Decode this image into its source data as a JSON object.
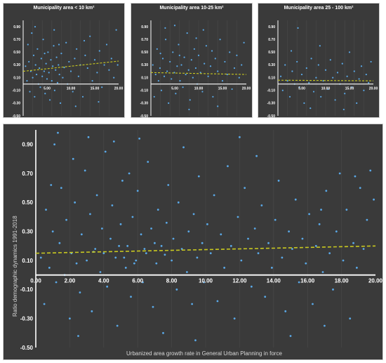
{
  "colors": {
    "background": "#3a3a3a",
    "points": "#5aa8e6",
    "trend": "#c8c820",
    "zero_line": "#ffffff",
    "text": "#ffffff"
  },
  "chart_data": [
    {
      "type": "scatter",
      "title": "Municipality area < 10 km²",
      "xlim": [
        0,
        20
      ],
      "ylim": [
        -0.5,
        1.0
      ],
      "x_ticks": [
        "5.00",
        "10.00",
        "15.00",
        "20.00"
      ],
      "y_ticks": [
        "0.90",
        "0.70",
        "0.50",
        "0.30",
        "0.10",
        "-0.10",
        "-0.30",
        "-0.50"
      ],
      "trend": {
        "x": [
          0,
          20
        ],
        "y": [
          0.2,
          0.36
        ]
      },
      "points": [
        [
          0.5,
          0.28
        ],
        [
          0.8,
          0.05
        ],
        [
          1.0,
          0.62
        ],
        [
          1.2,
          0.35
        ],
        [
          1.4,
          -0.12
        ],
        [
          1.6,
          0.2
        ],
        [
          1.8,
          0.8
        ],
        [
          2.0,
          0.1
        ],
        [
          2.2,
          0.45
        ],
        [
          2.4,
          -0.2
        ],
        [
          2.6,
          0.3
        ],
        [
          2.8,
          0.15
        ],
        [
          3.0,
          0.55
        ],
        [
          3.2,
          0.0
        ],
        [
          3.4,
          0.25
        ],
        [
          3.6,
          -0.05
        ],
        [
          3.8,
          0.4
        ],
        [
          4.0,
          0.12
        ],
        [
          4.2,
          0.7
        ],
        [
          4.4,
          0.2
        ],
        [
          4.6,
          -0.15
        ],
        [
          4.8,
          0.32
        ],
        [
          5.0,
          0.08
        ],
        [
          5.2,
          0.5
        ],
        [
          5.4,
          0.18
        ],
        [
          5.6,
          -0.25
        ],
        [
          5.8,
          0.38
        ],
        [
          6.0,
          0.05
        ],
        [
          6.2,
          0.28
        ],
        [
          6.4,
          0.6
        ],
        [
          6.6,
          -0.1
        ],
        [
          6.8,
          0.22
        ],
        [
          7.0,
          0.42
        ],
        [
          7.2,
          0.02
        ],
        [
          7.4,
          0.3
        ],
        [
          7.6,
          0.15
        ],
        [
          7.8,
          -0.3
        ],
        [
          8.0,
          0.48
        ],
        [
          8.3,
          0.1
        ],
        [
          8.6,
          0.26
        ],
        [
          9.0,
          0.65
        ],
        [
          9.3,
          0.0
        ],
        [
          9.6,
          0.35
        ],
        [
          10.0,
          0.2
        ],
        [
          10.4,
          -0.12
        ],
        [
          10.8,
          0.4
        ],
        [
          11.2,
          0.55
        ],
        [
          11.6,
          0.12
        ],
        [
          12.0,
          0.3
        ],
        [
          12.5,
          -0.2
        ],
        [
          13.0,
          0.45
        ],
        [
          13.5,
          0.25
        ],
        [
          14.0,
          0.75
        ],
        [
          14.5,
          0.05
        ],
        [
          15.0,
          0.38
        ],
        [
          15.5,
          0.18
        ],
        [
          16.0,
          0.52
        ],
        [
          16.5,
          -0.05
        ],
        [
          17.0,
          0.3
        ],
        [
          17.5,
          0.62
        ],
        [
          18.0,
          0.22
        ],
        [
          18.5,
          0.4
        ],
        [
          19.0,
          0.1
        ],
        [
          19.5,
          0.85
        ],
        [
          19.8,
          0.3
        ],
        [
          2.5,
          0.9
        ],
        [
          6.5,
          0.85
        ],
        [
          11.0,
          -0.35
        ],
        [
          15.8,
          -0.28
        ],
        [
          4.5,
          0.48
        ],
        [
          7.5,
          0.62
        ],
        [
          12.8,
          0.68
        ]
      ]
    },
    {
      "type": "scatter",
      "title": "Municipality area  10-25 km²",
      "xlim": [
        0,
        20
      ],
      "ylim": [
        -0.5,
        1.0
      ],
      "x_ticks": [
        "5.00",
        "10.00",
        "15.00",
        "20.00"
      ],
      "y_ticks": [
        "0.90",
        "0.70",
        "0.50",
        "0.30",
        "0.10",
        "-0.10",
        "-0.30",
        "-0.50"
      ],
      "trend": {
        "x": [
          0,
          20
        ],
        "y": [
          0.18,
          0.15
        ]
      },
      "points": [
        [
          0.4,
          0.3
        ],
        [
          0.7,
          -0.2
        ],
        [
          1.0,
          0.15
        ],
        [
          1.3,
          0.55
        ],
        [
          1.6,
          0.05
        ],
        [
          1.9,
          0.25
        ],
        [
          2.2,
          -0.1
        ],
        [
          2.5,
          0.4
        ],
        [
          2.8,
          0.12
        ],
        [
          3.1,
          0.7
        ],
        [
          3.4,
          0.2
        ],
        [
          3.7,
          -0.3
        ],
        [
          4.0,
          0.35
        ],
        [
          4.3,
          0.08
        ],
        [
          4.6,
          0.5
        ],
        [
          4.9,
          0.18
        ],
        [
          5.2,
          -0.15
        ],
        [
          5.5,
          0.28
        ],
        [
          5.8,
          0.62
        ],
        [
          6.1,
          0.05
        ],
        [
          6.4,
          0.3
        ],
        [
          6.7,
          -0.05
        ],
        [
          7.0,
          0.42
        ],
        [
          7.3,
          0.15
        ],
        [
          7.6,
          0.8
        ],
        [
          7.9,
          0.22
        ],
        [
          8.2,
          -0.25
        ],
        [
          8.5,
          0.38
        ],
        [
          8.8,
          0.1
        ],
        [
          9.1,
          0.55
        ],
        [
          9.4,
          0.25
        ],
        [
          9.7,
          0.0
        ],
        [
          10.0,
          0.45
        ],
        [
          10.4,
          0.18
        ],
        [
          10.8,
          -0.12
        ],
        [
          11.2,
          0.32
        ],
        [
          11.6,
          0.6
        ],
        [
          12.0,
          0.12
        ],
        [
          12.5,
          0.28
        ],
        [
          13.0,
          -0.2
        ],
        [
          13.5,
          0.4
        ],
        [
          14.0,
          0.2
        ],
        [
          14.5,
          0.7
        ],
        [
          15.0,
          0.05
        ],
        [
          15.5,
          0.35
        ],
        [
          16.0,
          0.15
        ],
        [
          16.5,
          0.5
        ],
        [
          17.0,
          -0.08
        ],
        [
          17.5,
          0.25
        ],
        [
          18.0,
          0.45
        ],
        [
          18.5,
          0.1
        ],
        [
          19.0,
          0.3
        ],
        [
          19.5,
          0.65
        ],
        [
          3.0,
          0.88
        ],
        [
          5.0,
          0.92
        ],
        [
          8.0,
          -0.4
        ],
        [
          11.0,
          0.85
        ],
        [
          14.0,
          -0.35
        ],
        [
          2.0,
          0.48
        ],
        [
          6.0,
          0.45
        ],
        [
          9.5,
          0.72
        ],
        [
          12.8,
          0.52
        ]
      ]
    },
    {
      "type": "scatter",
      "title": "Municipality area 25 - 100 km²",
      "xlim": [
        0,
        20
      ],
      "ylim": [
        -0.5,
        1.0
      ],
      "x_ticks": [
        "5.00",
        "10.00",
        "15.00",
        "20.00"
      ],
      "y_ticks": [
        "0.90",
        "0.70",
        "0.50",
        "0.30",
        "0.10",
        "-0.10",
        "-0.30",
        "-0.50"
      ],
      "trend": {
        "x": [
          0,
          20
        ],
        "y": [
          0.06,
          0.05
        ]
      },
      "points": [
        [
          0.6,
          0.12
        ],
        [
          1.0,
          -0.1
        ],
        [
          1.5,
          0.3
        ],
        [
          2.0,
          0.05
        ],
        [
          2.5,
          -0.2
        ],
        [
          3.0,
          0.2
        ],
        [
          3.5,
          0.0
        ],
        [
          4.0,
          0.35
        ],
        [
          4.5,
          -0.05
        ],
        [
          5.0,
          0.15
        ],
        [
          5.5,
          -0.3
        ],
        [
          6.0,
          0.25
        ],
        [
          6.5,
          0.02
        ],
        [
          7.0,
          0.4
        ],
        [
          7.5,
          -0.12
        ],
        [
          8.0,
          0.1
        ],
        [
          8.5,
          0.3
        ],
        [
          9.0,
          -0.2
        ],
        [
          9.5,
          0.05
        ],
        [
          10.0,
          0.22
        ],
        [
          10.5,
          -0.08
        ],
        [
          11.0,
          0.38
        ],
        [
          11.5,
          0.1
        ],
        [
          12.0,
          -0.25
        ],
        [
          12.5,
          0.18
        ],
        [
          13.0,
          0.0
        ],
        [
          13.5,
          0.32
        ],
        [
          14.0,
          -0.15
        ],
        [
          14.5,
          0.12
        ],
        [
          15.0,
          0.5
        ],
        [
          15.5,
          -0.05
        ],
        [
          16.0,
          0.2
        ],
        [
          16.5,
          -0.3
        ],
        [
          17.0,
          0.08
        ],
        [
          17.5,
          0.28
        ],
        [
          18.0,
          -0.1
        ],
        [
          18.5,
          0.15
        ],
        [
          19.0,
          0.02
        ],
        [
          19.5,
          0.35
        ],
        [
          4.2,
          0.88
        ],
        [
          8.8,
          0.6
        ],
        [
          13.8,
          -0.4
        ],
        [
          2.8,
          0.52
        ],
        [
          6.8,
          -0.38
        ]
      ]
    },
    {
      "type": "scatter",
      "title": "",
      "xlabel": "Urbanized area growth rate in General  Urban Planning in force",
      "ylabel": "Ratio  demographic  dynamics  1991-2018",
      "xlim": [
        0,
        20
      ],
      "ylim": [
        -0.5,
        1.0
      ],
      "x_ticks": [
        "0.00",
        "2.00",
        "4.00",
        "6.00",
        "8.00",
        "10.00",
        "12.00",
        "14.00",
        "16.00",
        "18.00",
        "20.00"
      ],
      "y_ticks": [
        "0.90",
        "0.70",
        "0.50",
        "0.30",
        "0.10",
        "-0.10",
        "-0.30",
        "-0.50"
      ],
      "trend": {
        "x": [
          0,
          20
        ],
        "y": [
          0.15,
          0.2
        ]
      },
      "points": [
        [
          0.3,
          0.12
        ],
        [
          0.5,
          -0.2
        ],
        [
          0.6,
          0.45
        ],
        [
          0.8,
          0.05
        ],
        [
          1.0,
          0.3
        ],
        [
          1.1,
          0.9
        ],
        [
          1.2,
          -0.05
        ],
        [
          1.4,
          0.22
        ],
        [
          1.5,
          0.6
        ],
        [
          1.7,
          0.0
        ],
        [
          1.8,
          0.38
        ],
        [
          2.0,
          -0.3
        ],
        [
          2.1,
          0.15
        ],
        [
          2.3,
          0.5
        ],
        [
          2.4,
          0.08
        ],
        [
          2.6,
          -0.12
        ],
        [
          2.7,
          0.28
        ],
        [
          2.9,
          0.72
        ],
        [
          3.0,
          0.1
        ],
        [
          3.2,
          0.42
        ],
        [
          3.3,
          -0.25
        ],
        [
          3.5,
          0.18
        ],
        [
          3.6,
          0.55
        ],
        [
          3.8,
          0.02
        ],
        [
          3.9,
          0.32
        ],
        [
          4.1,
          0.85
        ],
        [
          4.2,
          -0.08
        ],
        [
          4.4,
          0.25
        ],
        [
          4.5,
          0.48
        ],
        [
          4.7,
          0.12
        ],
        [
          4.8,
          -0.35
        ],
        [
          5.0,
          0.35
        ],
        [
          5.1,
          0.65
        ],
        [
          5.3,
          0.05
        ],
        [
          5.4,
          0.2
        ],
        [
          5.6,
          -0.15
        ],
        [
          5.7,
          0.4
        ],
        [
          5.9,
          0.1
        ],
        [
          6.0,
          0.58
        ],
        [
          6.2,
          0.28
        ],
        [
          6.3,
          -0.05
        ],
        [
          6.5,
          0.15
        ],
        [
          6.6,
          0.78
        ],
        [
          6.8,
          0.32
        ],
        [
          6.9,
          -0.22
        ],
        [
          7.1,
          0.08
        ],
        [
          7.2,
          0.45
        ],
        [
          7.4,
          0.2
        ],
        [
          7.5,
          -0.4
        ],
        [
          7.7,
          0.36
        ],
        [
          7.8,
          0.62
        ],
        [
          8.0,
          0.1
        ],
        [
          8.1,
          0.25
        ],
        [
          8.3,
          -0.1
        ],
        [
          8.4,
          0.5
        ],
        [
          8.6,
          0.18
        ],
        [
          8.7,
          0.88
        ],
        [
          8.9,
          0.02
        ],
        [
          9.0,
          0.3
        ],
        [
          9.2,
          -0.2
        ],
        [
          9.3,
          0.42
        ],
        [
          9.5,
          0.12
        ],
        [
          9.6,
          0.68
        ],
        [
          9.8,
          0.22
        ],
        [
          9.9,
          -0.05
        ],
        [
          10.1,
          0.35
        ],
        [
          10.3,
          0.15
        ],
        [
          10.5,
          0.55
        ],
        [
          10.7,
          -0.18
        ],
        [
          10.9,
          0.28
        ],
        [
          11.1,
          0.05
        ],
        [
          11.3,
          0.75
        ],
        [
          11.5,
          0.2
        ],
        [
          11.7,
          -0.3
        ],
        [
          11.9,
          0.4
        ],
        [
          12.1,
          0.1
        ],
        [
          12.3,
          0.6
        ],
        [
          12.5,
          0.25
        ],
        [
          12.7,
          -0.08
        ],
        [
          12.9,
          0.32
        ],
        [
          13.1,
          0.15
        ],
        [
          13.3,
          0.48
        ],
        [
          13.5,
          -0.15
        ],
        [
          13.7,
          0.22
        ],
        [
          13.9,
          0.05
        ],
        [
          14.1,
          0.38
        ],
        [
          14.3,
          0.65
        ],
        [
          14.5,
          0.12
        ],
        [
          14.7,
          -0.25
        ],
        [
          14.9,
          0.3
        ],
        [
          15.1,
          0.18
        ],
        [
          15.3,
          0.52
        ],
        [
          15.5,
          -0.05
        ],
        [
          15.7,
          0.25
        ],
        [
          15.9,
          0.08
        ],
        [
          16.1,
          0.42
        ],
        [
          16.3,
          -0.2
        ],
        [
          16.5,
          0.2
        ],
        [
          16.7,
          0.35
        ],
        [
          16.9,
          0.02
        ],
        [
          17.1,
          0.58
        ],
        [
          17.3,
          0.15
        ],
        [
          17.5,
          -0.1
        ],
        [
          17.7,
          0.3
        ],
        [
          17.9,
          0.7
        ],
        [
          18.1,
          0.1
        ],
        [
          18.3,
          0.45
        ],
        [
          18.5,
          -0.3
        ],
        [
          18.7,
          0.22
        ],
        [
          18.9,
          0.05
        ],
        [
          19.1,
          0.6
        ],
        [
          19.3,
          0.18
        ],
        [
          19.5,
          0.38
        ],
        [
          19.7,
          0.72
        ],
        [
          19.9,
          0.52
        ],
        [
          1.3,
          0.98
        ],
        [
          2.2,
          0.8
        ],
        [
          3.1,
          0.95
        ],
        [
          4.6,
          0.92
        ],
        [
          6.1,
          0.94
        ],
        [
          12.0,
          0.95
        ],
        [
          15.0,
          -0.42
        ],
        [
          17.0,
          -0.35
        ],
        [
          2.5,
          -0.42
        ],
        [
          9.4,
          -0.45
        ],
        [
          0.9,
          0.62
        ],
        [
          5.5,
          0.7
        ],
        [
          13.0,
          0.82
        ],
        [
          16.8,
          0.45
        ],
        [
          18.8,
          0.68
        ],
        [
          4.0,
          0.15
        ],
        [
          5.2,
          0.12
        ],
        [
          6.4,
          0.18
        ],
        [
          7.6,
          0.14
        ],
        [
          3.4,
          0.16
        ],
        [
          4.9,
          0.2
        ],
        [
          5.8,
          0.08
        ],
        [
          7.0,
          0.22
        ]
      ]
    }
  ]
}
